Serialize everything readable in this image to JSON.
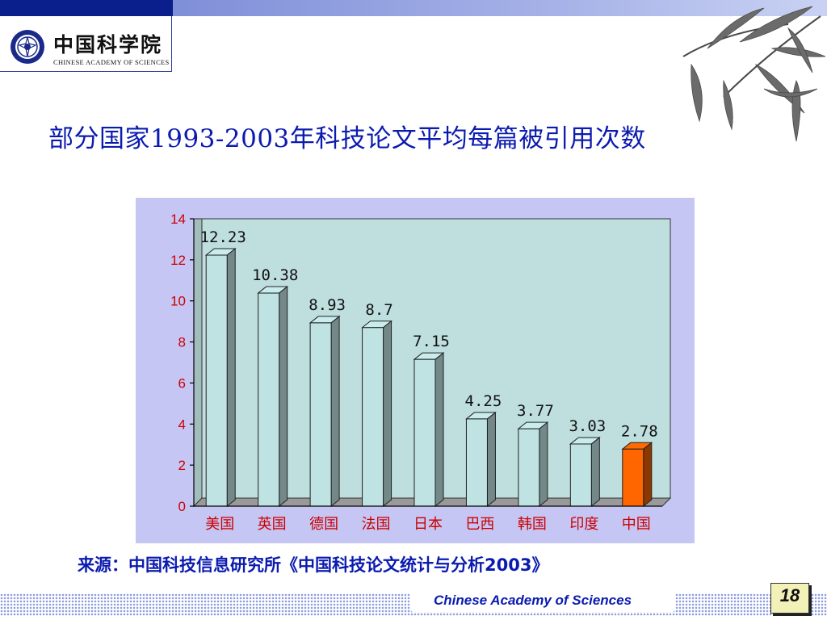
{
  "header": {
    "logo_cn": "中国科学院",
    "logo_en": "CHINESE ACADEMY OF SCIENCES",
    "logo_icon": "cas-emblem-icon",
    "decoration_icon": "bamboo-leaves-icon",
    "colors": {
      "banner_dark": "#0a1f8c",
      "banner_light": "#a7b3e8",
      "title_blue": "#0b1bb0"
    }
  },
  "title": "部分国家1993-2003年科技论文平均每篇被引用次数",
  "chart_data": {
    "type": "bar",
    "categories": [
      "美国",
      "英国",
      "德国",
      "法国",
      "日本",
      "巴西",
      "韩国",
      "印度",
      "中国"
    ],
    "values": [
      12.23,
      10.38,
      8.93,
      8.7,
      7.15,
      4.25,
      3.77,
      3.03,
      2.78
    ],
    "data_labels": [
      "12.23",
      "10.38",
      "8.93",
      "8.7",
      "7.15",
      "4.25",
      "3.77",
      "3.03",
      "2.78"
    ],
    "ylim": [
      0,
      14
    ],
    "yticks": [
      0,
      2,
      4,
      6,
      8,
      10,
      12,
      14
    ],
    "xlabel": "",
    "ylabel": "",
    "grid": false,
    "legend": "none",
    "colors": {
      "bar_default": "#bfe2e2",
      "bar_highlight": "#ff6600",
      "plot_bg": "#bfdede",
      "panel_bg": "#c6c6f5",
      "axis_text": "#cc0000"
    },
    "highlight_category": "中国"
  },
  "source": "来源：中国科技信息研究所《中国科技论文统计与分析2003》",
  "footer": {
    "org": "Chinese Academy of Sciences",
    "page": "18"
  }
}
